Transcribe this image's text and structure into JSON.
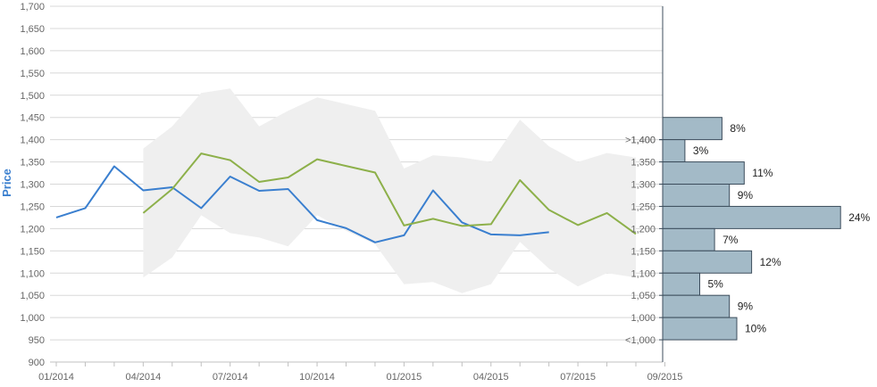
{
  "chart_data": {
    "type": "line",
    "ylabel": "Price",
    "xlabel": "",
    "title": "",
    "ylim": [
      900,
      1700
    ],
    "yticks": [
      "900",
      "950",
      "1,000",
      "1,050",
      "1,100",
      "1,150",
      "1,200",
      "1,250",
      "1,300",
      "1,350",
      "1,400",
      "1,450",
      "1,500",
      "1,550",
      "1,600",
      "1,650",
      "1,700"
    ],
    "xticks": [
      "01/2014",
      "04/2014",
      "07/2014",
      "10/2014",
      "01/2015",
      "04/2015",
      "07/2015",
      "09/2015"
    ],
    "grid": true,
    "colors": {
      "series_blue": "#3a7fcf",
      "series_green": "#8db04a",
      "band": "#efefef",
      "bars": "#a3bac7",
      "bar_border": "#3c4d5c",
      "ylabel": "#3a7fcf"
    },
    "band": {
      "x": [
        3,
        4,
        5,
        6,
        7,
        8,
        9,
        10,
        11,
        12,
        13,
        14,
        15,
        16,
        17,
        18,
        19,
        20
      ],
      "upper": [
        1380,
        1430,
        1505,
        1515,
        1430,
        1465,
        1495,
        1480,
        1465,
        1335,
        1365,
        1360,
        1350,
        1445,
        1385,
        1350,
        1370,
        1360
      ],
      "lower": [
        1090,
        1135,
        1230,
        1190,
        1180,
        1160,
        1230,
        1195,
        1165,
        1075,
        1080,
        1055,
        1075,
        1170,
        1110,
        1070,
        1100,
        1090
      ]
    },
    "series": [
      {
        "x": [
          0,
          1,
          2,
          3,
          4,
          5,
          6,
          7,
          8,
          9,
          10,
          11,
          12,
          13,
          14,
          15,
          16,
          17
        ],
        "values": [
          1225,
          1246,
          1340,
          1286,
          1293,
          1246,
          1317,
          1285,
          1289,
          1219,
          1201,
          1169,
          1185,
          1286,
          1214,
          1187,
          1185,
          1192
        ]
      },
      {
        "x": [
          3,
          4,
          5,
          6,
          7,
          8,
          9,
          10,
          11,
          12,
          13,
          14,
          15,
          16,
          17,
          18,
          19,
          20
        ],
        "values": [
          1235,
          1289,
          1369,
          1354,
          1305,
          1315,
          1356,
          1341,
          1326,
          1207,
          1222,
          1206,
          1210,
          1309,
          1242,
          1208,
          1235,
          1188
        ]
      }
    ],
    "distribution": {
      "type": "bar",
      "categories": [
        ">1,400",
        "1,400",
        "1,350",
        "1,300",
        "1,250",
        "1,200",
        "1,150",
        "1,100",
        "1,050",
        "1,000",
        "<1,000"
      ],
      "bins": [
        {
          "from": 1400,
          "to": 1450,
          "value": 8,
          "label": "8%"
        },
        {
          "from": 1350,
          "to": 1400,
          "value": 3,
          "label": "3%"
        },
        {
          "from": 1300,
          "to": 1350,
          "value": 11,
          "label": "11%"
        },
        {
          "from": 1250,
          "to": 1300,
          "value": 9,
          "label": "9%"
        },
        {
          "from": 1200,
          "to": 1250,
          "value": 24,
          "label": "24%"
        },
        {
          "from": 1150,
          "to": 1200,
          "value": 7,
          "label": "7%"
        },
        {
          "from": 1100,
          "to": 1150,
          "value": 12,
          "label": "12%"
        },
        {
          "from": 1050,
          "to": 1100,
          "value": 5,
          "label": "5%"
        },
        {
          "from": 1000,
          "to": 1050,
          "value": 9,
          "label": "9%"
        },
        {
          "from": 950,
          "to": 1000,
          "value": 10,
          "label": "10%"
        }
      ]
    }
  }
}
